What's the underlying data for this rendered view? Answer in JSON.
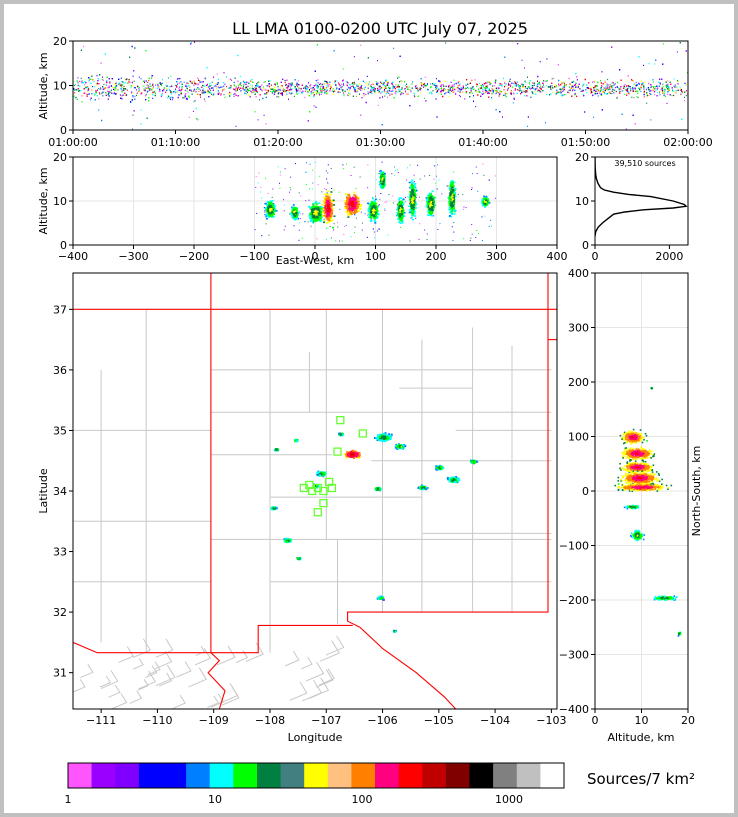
{
  "title": "LL LMA 0100-0200 UTC July 07, 2025",
  "colors": {
    "frame_bg": "#c0c0c0",
    "state_border": "#ff0000",
    "county_border": "#c8c8c8",
    "flash_marker": "#66ff33",
    "histogram_line": "#000000"
  },
  "colorbar": {
    "label": "Sources/7 km²",
    "tick_labels": [
      "1",
      "10",
      "100",
      "1000"
    ],
    "colors": [
      "#ff55ff",
      "#9900ff",
      "#7f00ff",
      "#0000ff",
      "#0000ff",
      "#0080ff",
      "#00ffff",
      "#00ff00",
      "#008040",
      "#408080",
      "#ffff00",
      "#ffc080",
      "#ff8000",
      "#ff0080",
      "#ff0000",
      "#c00000",
      "#800000",
      "#000000",
      "#808080",
      "#c0c0c0",
      "#ffffff"
    ]
  },
  "chart_data": [
    {
      "id": "time_height",
      "type": "scatter",
      "ylabel": "Altitude, km",
      "ylim": [
        0,
        20
      ],
      "y_ticks": [
        "0",
        "10",
        "20"
      ],
      "x_ticks": [
        "01:00:00",
        "01:10:00",
        "01:20:00",
        "01:30:00",
        "01:40:00",
        "01:50:00",
        "02:00:00"
      ],
      "xlim_minutes": [
        0,
        60
      ],
      "altitude_core_km": [
        5,
        13
      ]
    },
    {
      "id": "east_west_height",
      "type": "heatmap",
      "xlabel": "East-West, km",
      "ylabel": "Altitude, km",
      "xlim": [
        -400,
        400
      ],
      "ylim": [
        0,
        20
      ],
      "x_ticks": [
        "−400",
        "−300",
        "−200",
        "−100",
        "0",
        "100",
        "200",
        "300",
        "400"
      ],
      "y_ticks": [
        "0",
        "10",
        "20"
      ],
      "clusters": [
        {
          "x": -75,
          "z": 8.2,
          "w": 12,
          "h": 2.8
        },
        {
          "x": -35,
          "z": 7.5,
          "w": 8,
          "h": 2.2
        },
        {
          "x": 0,
          "z": 7.5,
          "w": 18,
          "h": 3.5
        },
        {
          "x": 20,
          "z": 8.5,
          "w": 12,
          "h": 5
        },
        {
          "x": 60,
          "z": 9.5,
          "w": 20,
          "h": 4
        },
        {
          "x": 95,
          "z": 8,
          "w": 12,
          "h": 3.5
        },
        {
          "x": 110,
          "z": 15,
          "w": 6,
          "h": 3
        },
        {
          "x": 140,
          "z": 8,
          "w": 8,
          "h": 4
        },
        {
          "x": 160,
          "z": 10.5,
          "w": 8,
          "h": 6
        },
        {
          "x": 190,
          "z": 9.5,
          "w": 10,
          "h": 4
        },
        {
          "x": 225,
          "z": 11,
          "w": 8,
          "h": 6
        },
        {
          "x": 280,
          "z": 10,
          "w": 8,
          "h": 1.5
        }
      ]
    },
    {
      "id": "altitude_histogram",
      "type": "line",
      "annotation": "39,510 sources",
      "xlim": [
        0,
        2500
      ],
      "ylim": [
        0,
        20
      ],
      "x_ticks": [
        "0",
        "2000"
      ],
      "y_ticks": [
        "0",
        "10",
        "20"
      ],
      "points": [
        [
          0,
          20
        ],
        [
          5,
          17.5
        ],
        [
          20,
          16
        ],
        [
          40,
          15
        ],
        [
          80,
          14
        ],
        [
          150,
          13
        ],
        [
          250,
          12.5
        ],
        [
          500,
          12
        ],
        [
          900,
          11.5
        ],
        [
          1500,
          11
        ],
        [
          2100,
          10
        ],
        [
          2400,
          9.2
        ],
        [
          2450,
          8.8
        ],
        [
          2100,
          8.4
        ],
        [
          1300,
          8
        ],
        [
          800,
          7.5
        ],
        [
          500,
          7
        ],
        [
          350,
          6
        ],
        [
          200,
          5
        ],
        [
          80,
          4
        ],
        [
          20,
          3
        ],
        [
          0,
          2
        ]
      ]
    },
    {
      "id": "plan_view",
      "type": "scatter",
      "xlabel": "Longitude",
      "ylabel": "Latitude",
      "xlim": [
        -111.5,
        -102.9
      ],
      "ylim": [
        30.4,
        37.6
      ],
      "x_ticks": [
        "−111",
        "−110",
        "−109",
        "−108",
        "−107",
        "−106",
        "−105",
        "−104",
        "−103"
      ],
      "y_ticks": [
        "31",
        "32",
        "33",
        "34",
        "35",
        "36",
        "37"
      ],
      "clusters": [
        {
          "lon": -106.55,
          "lat": 34.62,
          "r": 0.2
        },
        {
          "lon": -106.0,
          "lat": 34.9,
          "r": 0.2
        },
        {
          "lon": -105.7,
          "lat": 34.75,
          "r": 0.12
        },
        {
          "lon": -106.75,
          "lat": 34.95,
          "r": 0.06
        },
        {
          "lon": -107.1,
          "lat": 34.3,
          "r": 0.12
        },
        {
          "lon": -107.2,
          "lat": 34.1,
          "r": 0.08
        },
        {
          "lon": -105.0,
          "lat": 34.4,
          "r": 0.1
        },
        {
          "lon": -104.75,
          "lat": 34.2,
          "r": 0.15
        },
        {
          "lon": -105.3,
          "lat": 34.07,
          "r": 0.1
        },
        {
          "lon": -106.1,
          "lat": 34.05,
          "r": 0.08
        },
        {
          "lon": -104.4,
          "lat": 34.5,
          "r": 0.08
        },
        {
          "lon": -107.55,
          "lat": 34.85,
          "r": 0.05
        },
        {
          "lon": -107.9,
          "lat": 34.7,
          "r": 0.05
        },
        {
          "lon": -107.95,
          "lat": 33.73,
          "r": 0.07
        },
        {
          "lon": -107.7,
          "lat": 33.2,
          "r": 0.1
        },
        {
          "lon": -107.5,
          "lat": 32.9,
          "r": 0.05
        },
        {
          "lon": -106.05,
          "lat": 32.25,
          "r": 0.08
        },
        {
          "lon": -105.8,
          "lat": 31.7,
          "r": 0.03
        }
      ],
      "flash_markers": [
        {
          "lon": -106.75,
          "lat": 35.17
        },
        {
          "lon": -106.35,
          "lat": 34.95
        },
        {
          "lon": -106.8,
          "lat": 34.65
        },
        {
          "lon": -107.3,
          "lat": 34.1
        },
        {
          "lon": -107.25,
          "lat": 34.0
        },
        {
          "lon": -107.4,
          "lat": 34.05
        },
        {
          "lon": -107.15,
          "lat": 34.05
        },
        {
          "lon": -107.05,
          "lat": 34.0
        },
        {
          "lon": -106.9,
          "lat": 34.05
        },
        {
          "lon": -107.05,
          "lat": 33.8
        },
        {
          "lon": -107.15,
          "lat": 33.65
        },
        {
          "lon": -106.95,
          "lat": 34.15
        }
      ]
    },
    {
      "id": "north_south_height",
      "type": "heatmap",
      "xlabel": "Altitude, km",
      "ylabel": "North-South, km",
      "xlim": [
        0,
        20
      ],
      "ylim": [
        -400,
        400
      ],
      "x_ticks": [
        "0",
        "10",
        "20"
      ],
      "y_ticks": [
        "−400",
        "−300",
        "−200",
        "−100",
        "0",
        "100",
        "200",
        "300",
        "400"
      ],
      "clusters": [
        {
          "z": 8,
          "y": 100,
          "w": 3.5,
          "h": 18
        },
        {
          "z": 9,
          "y": 70,
          "w": 5,
          "h": 18
        },
        {
          "z": 9,
          "y": 45,
          "w": 5,
          "h": 14
        },
        {
          "z": 9.5,
          "y": 25,
          "w": 6,
          "h": 18
        },
        {
          "z": 10,
          "y": 8,
          "w": 8,
          "h": 10
        },
        {
          "z": 8,
          "y": -28,
          "w": 2.5,
          "h": 5
        },
        {
          "z": 9,
          "y": -80,
          "w": 2,
          "h": 15
        },
        {
          "z": 15,
          "y": -195,
          "w": 4,
          "h": 6
        },
        {
          "z": 18,
          "y": -260,
          "w": 0.5,
          "h": 6
        },
        {
          "z": 12,
          "y": 190,
          "w": 0.3,
          "h": 2
        }
      ]
    }
  ]
}
